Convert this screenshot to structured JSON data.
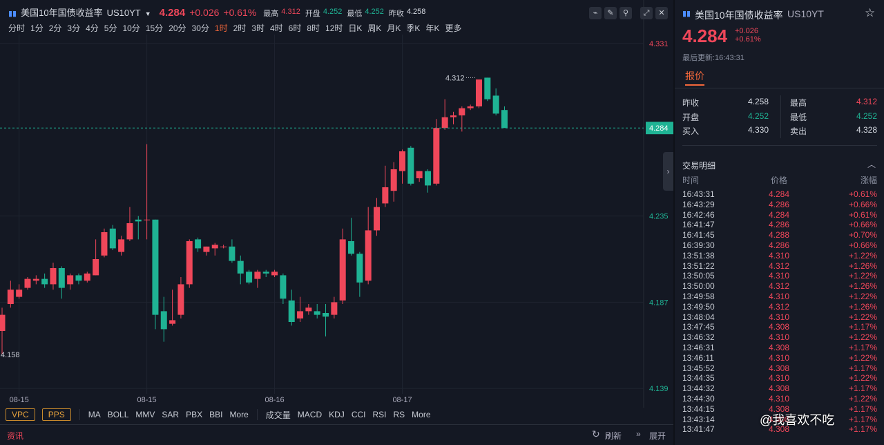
{
  "header": {
    "title": "美国10年国债收益率",
    "symbol": "US10YT",
    "price": "4.284",
    "change": "+0.026",
    "change_pct": "+0.61%",
    "stats": [
      {
        "label": "最高",
        "value": "4.312",
        "tone": "up"
      },
      {
        "label": "开盘",
        "value": "4.252",
        "tone": "down"
      },
      {
        "label": "最低",
        "value": "4.252",
        "tone": "down"
      },
      {
        "label": "昨收",
        "value": "4.258",
        "tone": "flat"
      }
    ]
  },
  "timeframes": {
    "items": [
      "分时",
      "1分",
      "2分",
      "3分",
      "4分",
      "5分",
      "10分",
      "15分",
      "20分",
      "30分",
      "1时",
      "2时",
      "3时",
      "4时",
      "6时",
      "8时",
      "12时",
      "日K",
      "周K",
      "月K",
      "季K",
      "年K",
      "更多"
    ],
    "active": 10
  },
  "indicators": {
    "boxed": [
      "VPC",
      "PPS"
    ],
    "main": [
      "MA",
      "BOLL",
      "MMV",
      "SAR",
      "PBX",
      "BBI",
      "More"
    ],
    "sub": [
      "成交量",
      "MACD",
      "KDJ",
      "CCI",
      "RSI",
      "RS",
      "More"
    ]
  },
  "footer": {
    "news": "资讯",
    "refresh": "刷新",
    "expand": "展开"
  },
  "chart_data": {
    "type": "candlestick",
    "categories": [
      null,
      null,
      "08-15",
      null,
      null,
      null,
      null,
      null,
      null,
      null,
      null,
      null,
      null,
      null,
      null,
      null,
      null,
      "08-15",
      null,
      null,
      null,
      null,
      null,
      null,
      null,
      null,
      null,
      null,
      null,
      null,
      null,
      null,
      "08-16",
      null,
      null,
      null,
      null,
      null,
      null,
      null,
      null,
      null,
      null,
      null,
      null,
      null,
      null,
      "08-17",
      null,
      null,
      null,
      null,
      null,
      null,
      null,
      null,
      null,
      null,
      null,
      null
    ],
    "open": [
      4.171,
      4.186,
      4.19,
      4.195,
      4.199,
      4.2,
      4.197,
      4.206,
      4.197,
      4.202,
      4.199,
      4.202,
      4.213,
      4.228,
      4.215,
      4.222,
      4.233,
      4.233,
      4.233,
      4.182,
      4.175,
      4.18,
      4.197,
      4.222,
      4.215,
      4.217,
      4.218,
      4.218,
      4.21,
      4.204,
      4.2,
      4.204,
      4.202,
      4.202,
      4.188,
      4.178,
      4.182,
      4.182,
      4.181,
      4.18,
      4.188,
      4.221,
      4.214,
      4.199,
      4.227,
      4.242,
      4.249,
      4.26,
      4.273,
      4.256,
      4.26,
      4.253,
      4.284,
      4.29,
      4.291,
      4.295,
      4.296,
      4.312,
      4.302,
      4.294
    ],
    "high": [
      4.184,
      4.199,
      4.197,
      4.201,
      4.202,
      4.203,
      4.209,
      4.207,
      4.203,
      4.203,
      4.204,
      4.222,
      4.228,
      4.23,
      4.224,
      4.24,
      4.235,
      4.275,
      4.233,
      4.19,
      4.194,
      4.201,
      4.222,
      4.223,
      4.218,
      4.22,
      4.219,
      4.222,
      4.213,
      4.205,
      4.205,
      4.205,
      4.205,
      4.203,
      4.194,
      4.19,
      4.186,
      4.186,
      4.186,
      4.19,
      4.228,
      4.234,
      4.215,
      4.24,
      4.245,
      4.263,
      4.265,
      4.272,
      4.274,
      4.26,
      4.261,
      4.289,
      4.3,
      4.293,
      4.296,
      4.297,
      4.311,
      4.312,
      4.306,
      4.296
    ],
    "low": [
      4.158,
      4.184,
      4.189,
      4.194,
      4.197,
      4.195,
      4.194,
      4.189,
      4.194,
      4.197,
      4.198,
      4.202,
      4.212,
      4.216,
      4.213,
      4.221,
      4.222,
      4.222,
      4.172,
      4.165,
      4.174,
      4.178,
      4.195,
      4.215,
      4.213,
      4.213,
      4.217,
      4.209,
      4.197,
      4.197,
      4.195,
      4.201,
      4.201,
      4.186,
      4.174,
      4.176,
      4.18,
      4.178,
      4.168,
      4.178,
      4.186,
      4.213,
      4.19,
      4.197,
      4.224,
      4.24,
      4.243,
      4.253,
      4.252,
      4.254,
      4.248,
      4.252,
      4.283,
      4.286,
      4.282,
      4.294,
      4.295,
      4.299,
      4.291,
      4.285
    ],
    "close": [
      4.18,
      4.194,
      4.194,
      4.2,
      4.2,
      4.197,
      4.206,
      4.195,
      4.202,
      4.199,
      4.203,
      4.211,
      4.226,
      4.217,
      4.222,
      4.231,
      4.232,
      4.233,
      4.18,
      4.172,
      4.177,
      4.197,
      4.221,
      4.217,
      4.218,
      4.219,
      4.218,
      4.21,
      4.203,
      4.198,
      4.204,
      4.203,
      4.204,
      4.189,
      4.176,
      4.182,
      4.184,
      4.18,
      4.179,
      4.187,
      4.222,
      4.214,
      4.198,
      4.227,
      4.24,
      4.251,
      4.261,
      4.271,
      4.253,
      4.26,
      4.252,
      4.284,
      4.29,
      4.291,
      4.295,
      4.296,
      4.311,
      4.3,
      4.292,
      4.284
    ],
    "up_color": "#f0475a",
    "down_color": "#1fb394",
    "ylim": [
      4.136,
      4.336
    ],
    "yticks": [
      4.331,
      4.235,
      4.187,
      4.139
    ],
    "ytick_colors": [
      "#f0475a",
      "#1fb394",
      "#1fb394",
      "#1fb394"
    ],
    "grid": true,
    "current_price": 4.284,
    "max_label": 4.312,
    "min_label": 4.158
  },
  "panel": {
    "title": "美国10年国债收益率",
    "symbol": "US10YT",
    "price": "4.284",
    "change": "+0.026",
    "change_pct": "+0.61%",
    "updated": "最后更新:16:43:31",
    "tab": "报价",
    "quote": [
      [
        {
          "label": "昨收",
          "value": "4.258",
          "tone": "flat"
        },
        {
          "label": "最高",
          "value": "4.312",
          "tone": "up"
        }
      ],
      [
        {
          "label": "开盘",
          "value": "4.252",
          "tone": "down"
        },
        {
          "label": "最低",
          "value": "4.252",
          "tone": "down"
        }
      ],
      [
        {
          "label": "买入",
          "value": "4.330",
          "tone": "flat"
        },
        {
          "label": "卖出",
          "value": "4.328",
          "tone": "flat"
        }
      ]
    ],
    "trades_title": "交易明细",
    "trade_headers": [
      "时间",
      "价格",
      "涨幅"
    ],
    "trades": [
      [
        "16:43:31",
        "4.284",
        "+0.61%"
      ],
      [
        "16:43:29",
        "4.286",
        "+0.66%"
      ],
      [
        "16:42:46",
        "4.284",
        "+0.61%"
      ],
      [
        "16:41:47",
        "4.286",
        "+0.66%"
      ],
      [
        "16:41:45",
        "4.288",
        "+0.70%"
      ],
      [
        "16:39:30",
        "4.286",
        "+0.66%"
      ],
      [
        "13:51:38",
        "4.310",
        "+1.22%"
      ],
      [
        "13:51:22",
        "4.312",
        "+1.26%"
      ],
      [
        "13:50:05",
        "4.310",
        "+1.22%"
      ],
      [
        "13:50:00",
        "4.312",
        "+1.26%"
      ],
      [
        "13:49:58",
        "4.310",
        "+1.22%"
      ],
      [
        "13:49:50",
        "4.312",
        "+1.26%"
      ],
      [
        "13:48:04",
        "4.310",
        "+1.22%"
      ],
      [
        "13:47:45",
        "4.308",
        "+1.17%"
      ],
      [
        "13:46:32",
        "4.310",
        "+1.22%"
      ],
      [
        "13:46:31",
        "4.308",
        "+1.17%"
      ],
      [
        "13:46:11",
        "4.310",
        "+1.22%"
      ],
      [
        "13:45:52",
        "4.308",
        "+1.17%"
      ],
      [
        "13:44:35",
        "4.310",
        "+1.22%"
      ],
      [
        "13:44:32",
        "4.308",
        "+1.17%"
      ],
      [
        "13:44:30",
        "4.310",
        "+1.22%"
      ],
      [
        "13:44:15",
        "4.308",
        "+1.17%"
      ],
      [
        "13:43:14",
        "4.308",
        "+1.17%"
      ],
      [
        "13:41:47",
        "4.308",
        "+1.17%"
      ]
    ]
  },
  "watermark": "@我喜欢不吃"
}
